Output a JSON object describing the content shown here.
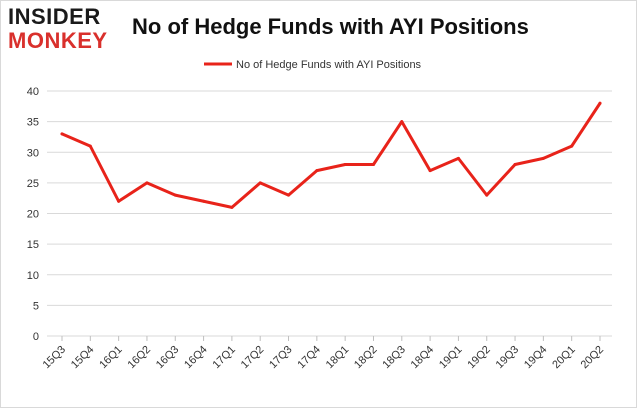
{
  "logo": {
    "line1": "INSIDER",
    "line2": "MONKEY"
  },
  "chart_data": {
    "type": "line",
    "title": "No of Hedge Funds with AYI Positions",
    "xlabel": "",
    "ylabel": "",
    "categories": [
      "15Q3",
      "15Q4",
      "16Q1",
      "16Q2",
      "16Q3",
      "16Q4",
      "17Q1",
      "17Q2",
      "17Q3",
      "17Q4",
      "18Q1",
      "18Q2",
      "18Q3",
      "18Q4",
      "19Q1",
      "19Q2",
      "19Q3",
      "19Q4",
      "20Q1",
      "20Q2"
    ],
    "series": [
      {
        "name": "No of Hedge Funds with AYI Positions",
        "values": [
          33,
          31,
          22,
          25,
          23,
          22,
          21,
          25,
          23,
          27,
          28,
          28,
          35,
          27,
          29,
          23,
          28,
          29,
          31,
          38
        ],
        "color": "#e8231a"
      }
    ],
    "ylim": [
      0,
      40
    ],
    "yticks": [
      0,
      5,
      10,
      15,
      20,
      25,
      30,
      35,
      40
    ],
    "grid": true,
    "legend": "top-center"
  }
}
